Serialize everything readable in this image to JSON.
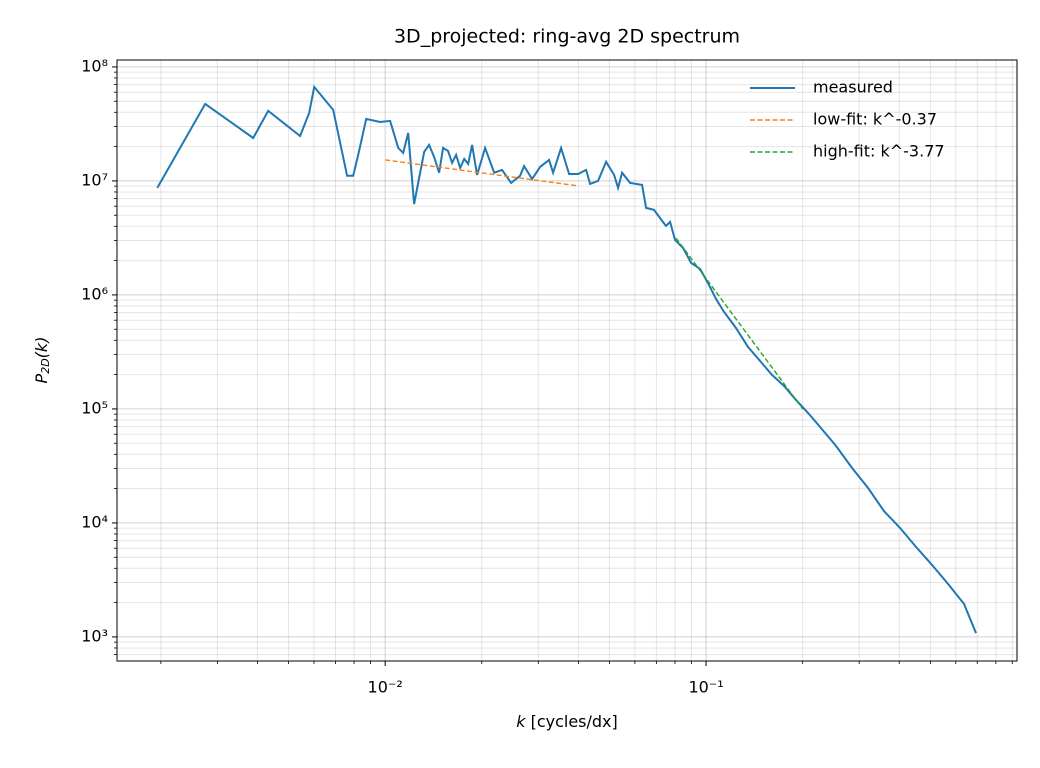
{
  "chart_data": {
    "type": "line",
    "title": "3D_projected: ring-avg 2D spectrum",
    "xlabel": [
      "k",
      " [cycles/dx]"
    ],
    "ylabel": [
      "P",
      "2D",
      "(k)"
    ],
    "xscale": "log",
    "yscale": "log",
    "grid": true,
    "legend": "upper right",
    "xlim": [
      0.00146,
      0.931
    ],
    "ylim": [
      615,
      115000000
    ],
    "xticks": [
      {
        "value": 0.01,
        "label": "10⁻²"
      },
      {
        "value": 0.1,
        "label": "10⁻¹"
      }
    ],
    "yticks": [
      {
        "value": 1000,
        "label": "10³"
      },
      {
        "value": 10000,
        "label": "10⁴"
      },
      {
        "value": 100000,
        "label": "10⁵"
      },
      {
        "value": 1000000,
        "label": "10⁶"
      },
      {
        "value": 10000000,
        "label": "10⁷"
      },
      {
        "value": 100000000,
        "label": "10⁸"
      }
    ],
    "xminorticks": [
      0.002,
      0.003,
      0.004,
      0.005,
      0.006,
      0.007,
      0.008,
      0.009,
      0.02,
      0.03,
      0.04,
      0.05,
      0.06,
      0.07,
      0.08,
      0.09,
      0.2,
      0.3,
      0.4,
      0.5,
      0.6,
      0.7,
      0.8,
      0.9
    ],
    "yminorticks": [
      700,
      800,
      900,
      2000,
      3000,
      4000,
      5000,
      6000,
      7000,
      8000,
      9000,
      20000,
      30000,
      40000,
      50000,
      60000,
      70000,
      80000,
      90000,
      200000,
      300000,
      400000,
      500000,
      600000,
      700000,
      800000,
      900000,
      2000000,
      3000000,
      4000000,
      5000000,
      6000000,
      7000000,
      8000000,
      9000000,
      20000000,
      30000000,
      40000000,
      50000000,
      60000000,
      70000000,
      80000000,
      90000000
    ],
    "series": [
      {
        "name": "measured",
        "color": "#1f77b4",
        "style": "solid",
        "x": [
          0.00195,
          0.00275,
          0.00388,
          0.00432,
          0.00543,
          0.0058,
          0.00601,
          0.00689,
          0.00761,
          0.00795,
          0.00824,
          0.00873,
          0.00965,
          0.01036,
          0.01098,
          0.01138,
          0.0118,
          0.01231,
          0.01323,
          0.01371,
          0.01421,
          0.01473,
          0.01516,
          0.01571,
          0.01617,
          0.01664,
          0.01713,
          0.01763,
          0.01814,
          0.01866,
          0.01934,
          0.02049,
          0.02186,
          0.02315,
          0.02469,
          0.02634,
          0.0271,
          0.0287,
          0.03041,
          0.03243,
          0.03337,
          0.03534,
          0.03743,
          0.03992,
          0.04228,
          0.04351,
          0.04609,
          0.04881,
          0.05168,
          0.05319,
          0.05474,
          0.05797,
          0.06319,
          0.06502,
          0.06887,
          0.07293,
          0.07504,
          0.07723,
          0.08003,
          0.08478,
          0.08982,
          0.09579,
          0.1014,
          0.1074,
          0.1138,
          0.124,
          0.1351,
          0.1473,
          0.1605,
          0.175,
          0.1907,
          0.2078,
          0.2265,
          0.2541,
          0.285,
          0.3197,
          0.3584,
          0.4021,
          0.451,
          0.5058,
          0.5674,
          0.6363,
          0.6936
        ],
        "values": [
          8680000,
          47400000,
          23800000,
          41100000,
          24800000,
          39500000,
          66800000,
          42000000,
          11100000,
          11100000,
          16900000,
          35000000,
          32900000,
          33600000,
          19500000,
          17600000,
          26400000,
          6280000,
          18000000,
          20700000,
          16200000,
          11800000,
          19500000,
          18300000,
          14400000,
          16900000,
          13000000,
          15600000,
          14100000,
          20700000,
          11300000,
          19500000,
          11800000,
          12500000,
          9600000,
          11100000,
          13500000,
          10400000,
          13300000,
          15300000,
          11800000,
          19500000,
          11500000,
          11500000,
          12500000,
          9410000,
          10000000,
          14700000,
          11300000,
          8680000,
          11800000,
          9600000,
          9220000,
          5800000,
          5570000,
          4460000,
          4030000,
          4370000,
          3040000,
          2580000,
          1910000,
          1690000,
          1270000,
          922000,
          709000,
          513000,
          350000,
          264000,
          199000,
          159000,
          120000,
          92200,
          69500,
          47400,
          30400,
          20300,
          12700,
          9040,
          6160,
          4280,
          2920,
          1950,
          1080
        ]
      },
      {
        "name": "low-fit: k^-0.37",
        "color": "#ff7f0e",
        "style": "dashed",
        "x": [
          0.01,
          0.04
        ],
        "values": [
          15300000,
          9040000
        ]
      },
      {
        "name": "high-fit: k^-3.77",
        "color": "#2ca02c",
        "style": "dashed",
        "x": [
          0.0806,
          0.2
        ],
        "values": [
          3160000,
          100000
        ]
      }
    ]
  }
}
